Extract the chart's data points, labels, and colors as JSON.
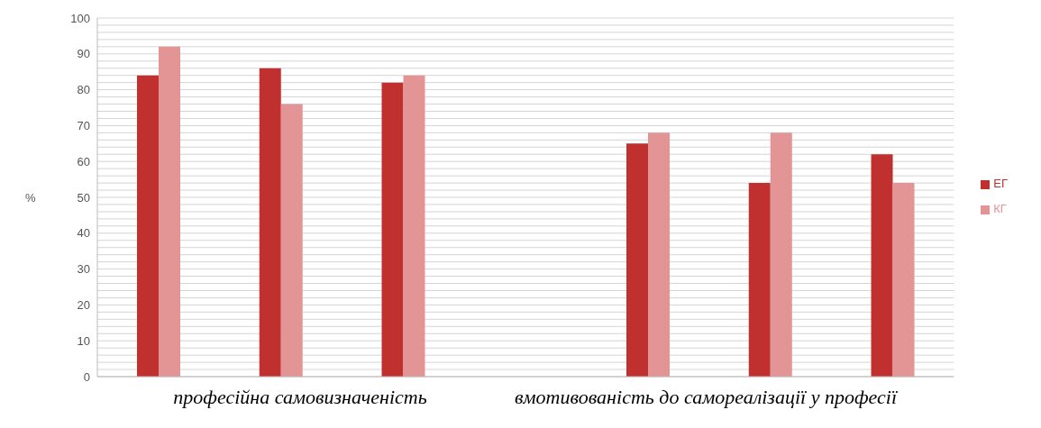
{
  "chart_data": {
    "type": "bar",
    "ylabel": "%",
    "categories": [
      null,
      null,
      null,
      null,
      null,
      null,
      null
    ],
    "series": [
      {
        "name": "ЕГ",
        "color": "#c0302e",
        "values": [
          84,
          86,
          82,
          null,
          65,
          54,
          62
        ]
      },
      {
        "name": "КГ",
        "color": "#e39494",
        "values": [
          92,
          76,
          84,
          null,
          68,
          68,
          54
        ]
      }
    ],
    "ylim": [
      0,
      100
    ],
    "yticks": [
      0,
      {
        "value": 2,
        "label": null
      },
      {
        "value": 4,
        "label": null
      },
      {
        "value": 6,
        "label": null
      },
      {
        "value": 8,
        "label": null
      },
      10,
      {
        "value": 12,
        "label": null
      },
      {
        "value": 14,
        "label": null
      },
      {
        "value": 16,
        "label": null
      },
      {
        "value": 18,
        "label": null
      },
      20,
      {
        "value": 22,
        "label": null
      },
      {
        "value": 24,
        "label": null
      },
      {
        "value": 26,
        "label": null
      },
      {
        "value": 28,
        "label": null
      },
      30,
      {
        "value": 32,
        "label": null
      },
      {
        "value": 34,
        "label": null
      },
      {
        "value": 36,
        "label": null
      },
      {
        "value": 38,
        "label": null
      },
      40,
      {
        "value": 42,
        "label": null
      },
      {
        "value": 44,
        "label": null
      },
      {
        "value": 46,
        "label": null
      },
      {
        "value": 48,
        "label": null
      },
      50,
      {
        "value": 52,
        "label": null
      },
      {
        "value": 54,
        "label": null
      },
      {
        "value": 56,
        "label": null
      },
      {
        "value": 58,
        "label": null
      },
      60,
      {
        "value": 62,
        "label": null
      },
      {
        "value": 64,
        "label": null
      },
      {
        "value": 66,
        "label": null
      },
      {
        "value": 68,
        "label": null
      },
      70,
      {
        "value": 72,
        "label": null
      },
      {
        "value": 74,
        "label": null
      },
      {
        "value": 76,
        "label": null
      },
      {
        "value": 78,
        "label": null
      },
      80,
      {
        "value": 82,
        "label": null
      },
      {
        "value": 84,
        "label": null
      },
      {
        "value": 86,
        "label": null
      },
      {
        "value": 88,
        "label": null
      },
      90,
      {
        "value": 92,
        "label": null
      },
      {
        "value": 94,
        "label": null
      },
      {
        "value": 96,
        "label": null
      },
      {
        "value": 98,
        "label": null
      },
      100
    ],
    "grid": "y",
    "legend": "right",
    "annotations": [
      "професійна самовизначеність",
      "вмотивованість до самореалізації у професії"
    ]
  }
}
